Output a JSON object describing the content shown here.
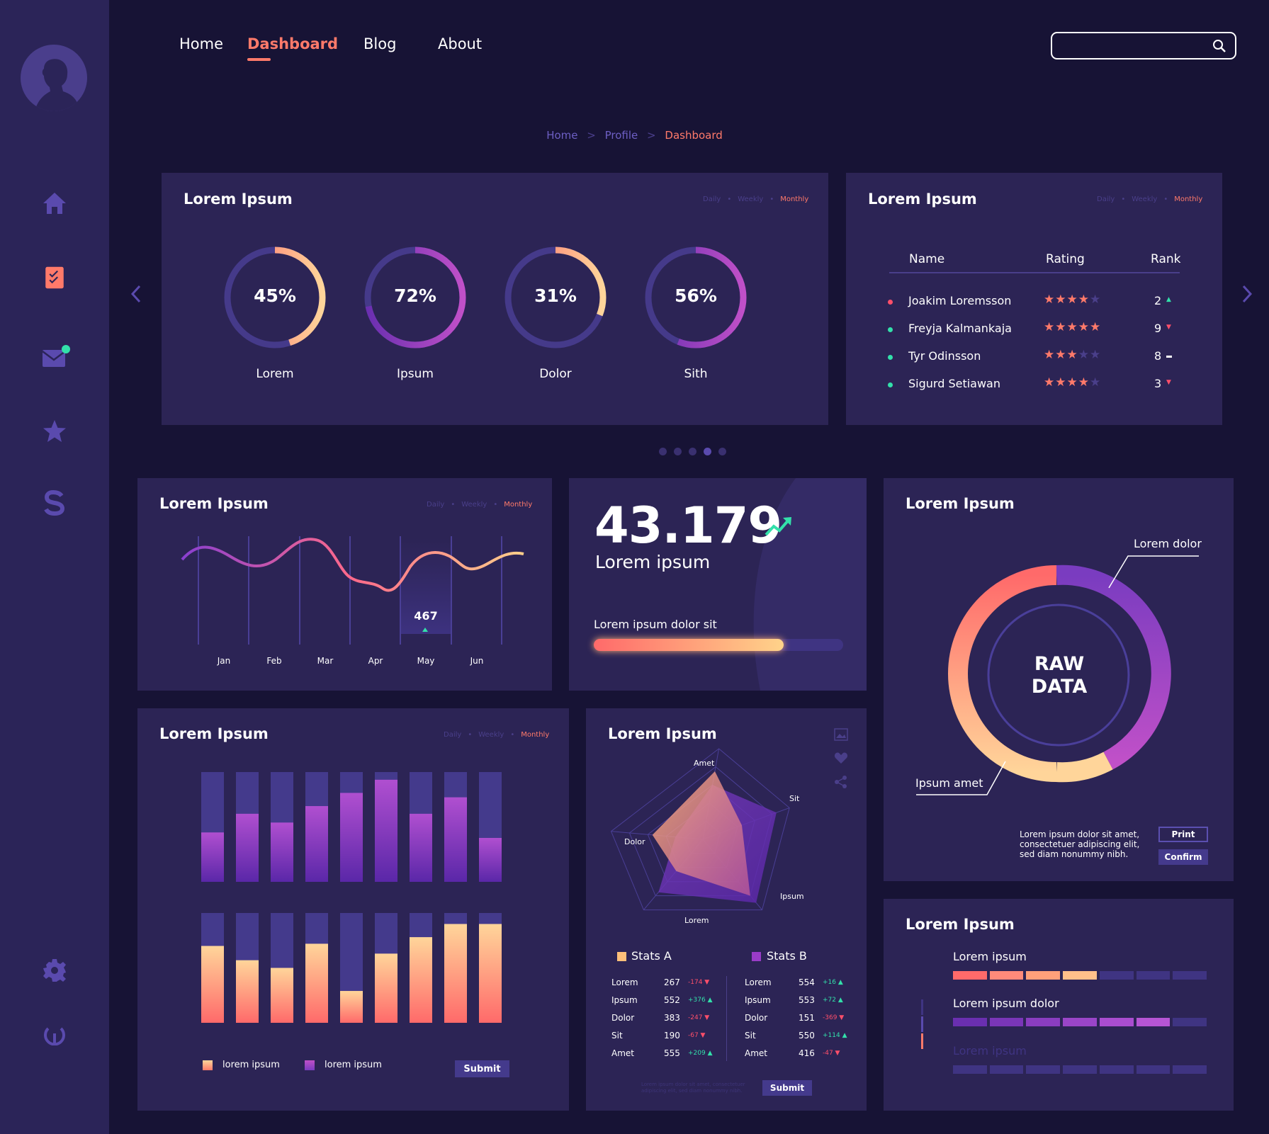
{
  "nav": {
    "items": [
      {
        "label": "Home",
        "x": 253
      },
      {
        "label": "Dashboard",
        "x": 349
      },
      {
        "label": "Blog",
        "x": 513
      },
      {
        "label": "About",
        "x": 618
      }
    ],
    "search_placeholder": ""
  },
  "breadcrumb": {
    "items": [
      "Home",
      "Profile",
      "Dashboard"
    ],
    "sep": ">"
  },
  "periods": {
    "daily": "Daily",
    "weekly": "Weekly",
    "monthly": "Monthly",
    "sep": "•"
  },
  "rings_card": {
    "title": "Lorem Ipsum",
    "rings": [
      {
        "label": "Lorem",
        "value": "45%",
        "pct": 45
      },
      {
        "label": "Ipsum",
        "value": "72%",
        "pct": 72
      },
      {
        "label": "Dolor",
        "value": "31%",
        "pct": 31
      },
      {
        "label": "Sith",
        "value": "56%",
        "pct": 56
      }
    ]
  },
  "rank_card": {
    "title": "Lorem Ipsum",
    "headers": {
      "name": "Name",
      "rating": "Rating",
      "rank": "Rank"
    },
    "rows": [
      {
        "name": "Joakim Loremsson",
        "stars": 4,
        "rank": "2",
        "trend": "up",
        "dot": "#ff4f6a"
      },
      {
        "name": "Freyja Kalmankaja",
        "stars": 5,
        "rank": "9",
        "trend": "down",
        "dot": "#33e0aa"
      },
      {
        "name": "Tyr Odinsson",
        "stars": 3,
        "rank": "8",
        "trend": "same",
        "dot": "#33e0aa"
      },
      {
        "name": "Sigurd Setiawan",
        "stars": 4,
        "rank": "3",
        "trend": "down",
        "dot": "#33e0aa"
      }
    ]
  },
  "line_card": {
    "title": "Lorem Ipsum",
    "months": [
      "Jan",
      "Feb",
      "Mar",
      "Apr",
      "May",
      "Jun"
    ],
    "highlight_value": "467"
  },
  "kpi_card": {
    "value": "43.179",
    "label": "Lorem ipsum",
    "progress_label": "Lorem ipsum dolor sit",
    "progress": 0.76
  },
  "donut_card": {
    "title": "Lorem Ipsum",
    "center": [
      "RAW",
      "DATA"
    ],
    "label_top": "Lorem dolor",
    "label_bottom": "Ipsum amet",
    "description": [
      "Lorem ipsum dolor sit amet,",
      "consectetuer adipiscing elit,",
      "sed diam nonummy nibh."
    ],
    "print": "Print",
    "confirm": "Confirm"
  },
  "bars_card": {
    "title": "Lorem Ipsum",
    "top_values": [
      0.45,
      0.62,
      0.54,
      0.69,
      0.81,
      0.93,
      0.62,
      0.77,
      0.4
    ],
    "bottom_values": [
      0.7,
      0.57,
      0.5,
      0.72,
      0.29,
      0.63,
      0.78,
      0.9,
      0.9
    ],
    "legend": [
      "lorem ipsum",
      "lorem ipsum"
    ],
    "submit": "Submit"
  },
  "radar_card": {
    "title": "Lorem Ipsum",
    "axes": [
      "Amet",
      "Sit",
      "Ipsum",
      "Lorem",
      "Dolor"
    ],
    "series_a": [
      0.75,
      0.45,
      0.8,
      0.45,
      0.55
    ],
    "series_b": [
      0.6,
      0.85,
      0.9,
      0.75,
      0.3
    ],
    "stats_a": {
      "name": "Stats A",
      "rows": [
        {
          "label": "Lorem",
          "value": "267",
          "change": "-174",
          "dir": "down"
        },
        {
          "label": "Ipsum",
          "value": "552",
          "change": "+376",
          "dir": "up"
        },
        {
          "label": "Dolor",
          "value": "383",
          "change": "-247",
          "dir": "down"
        },
        {
          "label": "Sit",
          "value": "190",
          "change": "-67",
          "dir": "down"
        },
        {
          "label": "Amet",
          "value": "555",
          "change": "+209",
          "dir": "up"
        }
      ]
    },
    "stats_b": {
      "name": "Stats B",
      "rows": [
        {
          "label": "Lorem",
          "value": "554",
          "change": "+16",
          "dir": "up"
        },
        {
          "label": "Ipsum",
          "value": "553",
          "change": "+72",
          "dir": "up"
        },
        {
          "label": "Dolor",
          "value": "151",
          "change": "-369",
          "dir": "down"
        },
        {
          "label": "Sit",
          "value": "550",
          "change": "+114",
          "dir": "up"
        },
        {
          "label": "Amet",
          "value": "416",
          "change": "-47",
          "dir": "down"
        }
      ]
    },
    "footnote": [
      "Lorem ipsum dolor sit amet, consectetuer",
      "adipiscing elit, sed diam nonummy nibh."
    ],
    "submit": "Submit"
  },
  "segments_card": {
    "title": "Lorem Ipsum",
    "rows": [
      {
        "label": "Lorem ipsum",
        "filled": 4
      },
      {
        "label": "Lorem ipsum dolor",
        "filled": 6
      },
      {
        "label": "Lorem ipsum",
        "filled": 0
      }
    ]
  },
  "colors": {
    "accent": "#ff7a6a",
    "bg": "#171335",
    "card": "#2c2455",
    "sidebar": "#2b2458",
    "green": "#33e0aa"
  },
  "icons": [
    "home-icon",
    "clipboard-check-icon",
    "mail-icon",
    "star-icon",
    "dollar-icon",
    "gear-icon",
    "power-icon",
    "search-icon",
    "trend-up-icon",
    "image-icon",
    "heart-icon",
    "share-icon",
    "chevron-left-icon",
    "chevron-right-icon"
  ]
}
